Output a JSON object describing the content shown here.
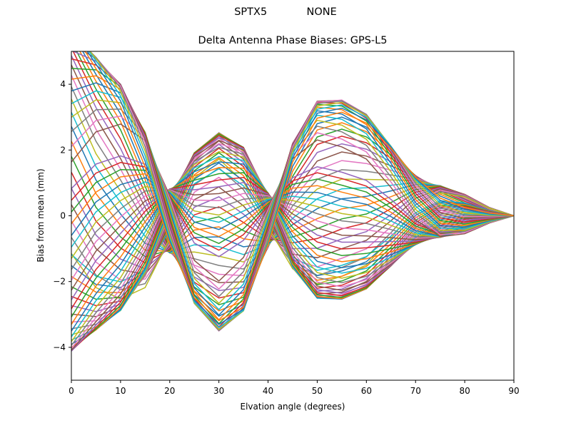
{
  "figure": {
    "suptitle_left": "SPTX5",
    "suptitle_right": "NONE",
    "title": "Delta Antenna Phase Biases: GPS-L5"
  },
  "chart_data": {
    "type": "line",
    "title": "Delta Antenna Phase Biases: GPS-L5",
    "suptitle": "SPTX5            NONE",
    "xlabel": "Elvation angle (degrees)",
    "ylabel": "Bias from mean (mm)",
    "xlim": [
      0,
      90
    ],
    "ylim": [
      -5,
      5
    ],
    "xticks": [
      0,
      10,
      20,
      30,
      40,
      50,
      60,
      70,
      80,
      90
    ],
    "yticks": [
      -4,
      -2,
      0,
      2,
      4
    ],
    "grid": false,
    "legend": null,
    "x": [
      0,
      5,
      10,
      15,
      20,
      25,
      30,
      35,
      40,
      45,
      50,
      55,
      60,
      65,
      70,
      75,
      80,
      85,
      90
    ],
    "basis": {
      "b1": [
        5.6,
        4.3,
        3.1,
        1.3,
        -0.9,
        -2.4,
        -3.05,
        -2.7,
        -0.9,
        1.5,
        2.8,
        3.0,
        2.7,
        2.0,
        1.2,
        0.6,
        0.3,
        0.1,
        0
      ],
      "b2": [
        -1.0,
        -1.9,
        -2.2,
        -1.9,
        -0.6,
        1.0,
        1.5,
        0.9,
        -0.3,
        -1.4,
        -1.8,
        -1.6,
        -1.3,
        -0.6,
        0.2,
        0.6,
        0.5,
        0.2,
        0
      ]
    },
    "series_count": 72,
    "series_note": "Each series = cos(phi)*b1 + sin(phi)*b2 scaled; phi sampled uniformly; colors cycle matplotlib tab10",
    "colors": [
      "#1f77b4",
      "#ff7f0e",
      "#2ca02c",
      "#d62728",
      "#9467bd",
      "#8c564b",
      "#e377c2",
      "#7f7f7f",
      "#bcbd22",
      "#17becf"
    ]
  },
  "axes": {
    "xlabel": "Elvation angle (degrees)",
    "ylabel": "Bias from mean (mm)",
    "xtick_labels": [
      "0",
      "10",
      "20",
      "30",
      "40",
      "50",
      "60",
      "70",
      "80",
      "90"
    ],
    "ytick_labels": [
      "4",
      "2",
      "0",
      "−2",
      "−4"
    ]
  }
}
